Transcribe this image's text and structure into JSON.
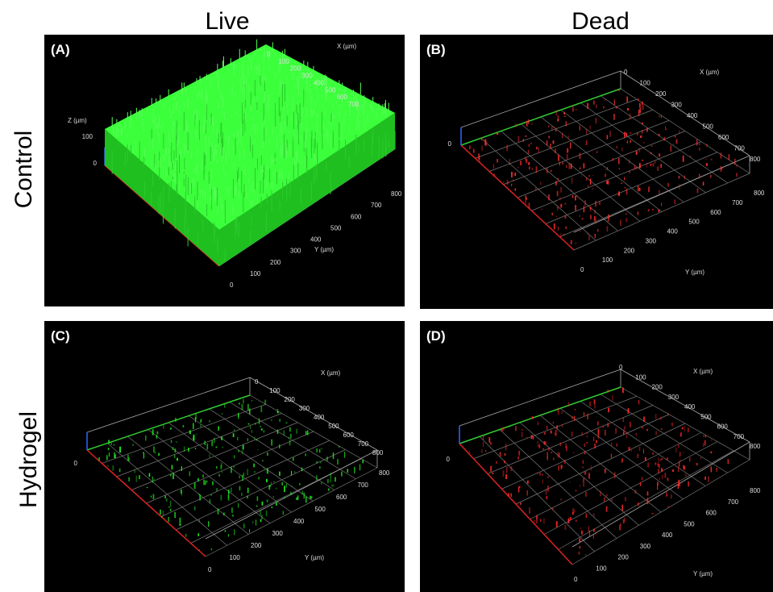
{
  "column_headers": [
    "Live",
    "Dead"
  ],
  "row_labels": [
    "Control",
    "Hydrogel"
  ],
  "panels": [
    {
      "label": "(A)",
      "x_axis_title": "X (µm)",
      "y_axis_title": "Y (µm)",
      "z_axis_title": "Z (µm)",
      "x_ticks": [
        0,
        100,
        200,
        300,
        400,
        500,
        600,
        700
      ],
      "y_ticks": [
        0,
        100,
        200,
        300,
        400,
        500,
        600,
        700,
        800
      ],
      "z_ticks": [
        0,
        100
      ]
    },
    {
      "label": "(B)",
      "x_axis_title": "X (µm)",
      "y_axis_title": "Y (µm)",
      "x_ticks": [
        0,
        100,
        200,
        300,
        400,
        500,
        600,
        700,
        800
      ],
      "y_ticks": [
        0,
        100,
        200,
        300,
        400,
        500,
        600,
        700,
        800
      ],
      "z_ticks": [
        0
      ]
    },
    {
      "label": "(C)",
      "x_axis_title": "X (µm)",
      "y_axis_title": "Y (µm)",
      "x_ticks": [
        0,
        100,
        200,
        300,
        400,
        500,
        600,
        700,
        800
      ],
      "y_ticks": [
        0,
        100,
        200,
        300,
        400,
        500,
        600,
        700,
        800
      ],
      "z_ticks": [
        0
      ]
    },
    {
      "label": "(D)",
      "x_axis_title": "X (µm)",
      "y_axis_title": "Y (µm)",
      "x_ticks": [
        0,
        100,
        200,
        300,
        400,
        500,
        600,
        700,
        800
      ],
      "y_ticks": [
        0,
        100,
        200,
        300,
        400,
        500,
        600,
        700,
        800
      ],
      "z_ticks": [
        0
      ]
    }
  ]
}
